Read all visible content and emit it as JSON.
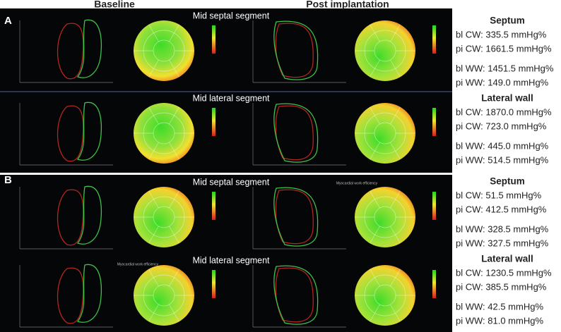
{
  "header": {
    "baseline": "Baseline",
    "post": "Post implantation"
  },
  "panels": [
    {
      "label": "A",
      "rows": [
        {
          "segment": "Mid septal segment"
        },
        {
          "segment": "Mid lateral segment"
        }
      ],
      "stats": [
        {
          "title": "Septum",
          "lines": [
            "bl CW: 335.5 mmHg%",
            "pi CW: 1661.5 mmHg%",
            "bl WW: 1451.5 mmHg%",
            "pi WW: 149.0 mmHg%"
          ]
        },
        {
          "title": "Lateral wall",
          "lines": [
            "bl CW: 1870.0 mmHg%",
            "pi CW: 723.0 mmHg%",
            "bl WW: 445.0 mmHg%",
            "pi WW: 514.5 mmHg%"
          ]
        }
      ]
    },
    {
      "label": "B",
      "rows": [
        {
          "segment": "Mid septal segment",
          "post_caption": "Myocardial work efficiency"
        },
        {
          "segment": "Mid lateral segment",
          "baseline_caption": "Myocardial work efficiency"
        }
      ],
      "stats": [
        {
          "title": "Septum",
          "lines": [
            "bl CW: 51.5 mmHg%",
            "pi CW: 412.5 mmHg%",
            "bl WW: 328.5 mmHg%",
            "pi WW: 327.5 mmHg%"
          ]
        },
        {
          "title": "Lateral wall",
          "lines": [
            "bl CW: 1230.5 mmHg%",
            "pi CW: 385.5 mmHg%",
            "bl WW: 42.5 mmHg%",
            "pi WW: 81.0 mmHg%"
          ]
        }
      ]
    }
  ]
}
